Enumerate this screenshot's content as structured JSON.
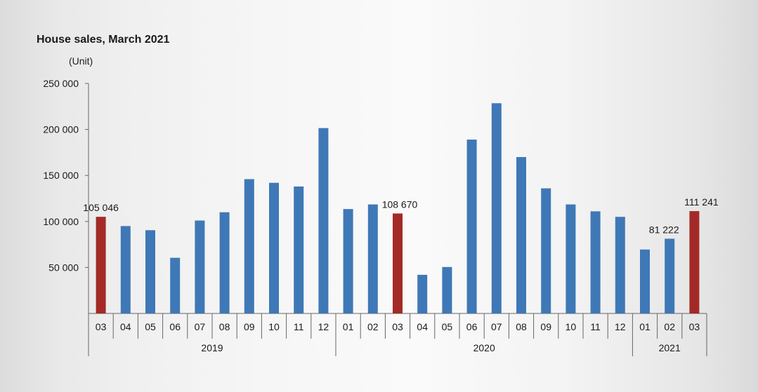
{
  "chart_data": {
    "type": "bar",
    "title": "House sales, March 2021",
    "unit_label": "(Unit)",
    "ylim": [
      0,
      250000
    ],
    "y_ticks": [
      50000,
      100000,
      150000,
      200000,
      250000
    ],
    "y_tick_labels": [
      "50 000",
      "100 000",
      "150 000",
      "200 000",
      "250 000"
    ],
    "grid": false,
    "categories": [
      "03",
      "04",
      "05",
      "06",
      "07",
      "08",
      "09",
      "10",
      "11",
      "12",
      "01",
      "02",
      "03",
      "04",
      "05",
      "06",
      "07",
      "08",
      "09",
      "10",
      "11",
      "12",
      "01",
      "02",
      "03"
    ],
    "years": [
      {
        "label": "2019",
        "start": 0,
        "end": 9
      },
      {
        "label": "2020",
        "start": 10,
        "end": 21
      },
      {
        "label": "2021",
        "start": 22,
        "end": 24
      }
    ],
    "values": [
      105046,
      95000,
      90500,
      60500,
      101000,
      110000,
      146000,
      142000,
      138000,
      201500,
      113500,
      118500,
      108670,
      42000,
      50500,
      189000,
      228500,
      170000,
      136000,
      118500,
      111000,
      105000,
      69500,
      81222,
      111241
    ],
    "highlight": [
      true,
      false,
      false,
      false,
      false,
      false,
      false,
      false,
      false,
      false,
      false,
      false,
      true,
      false,
      false,
      false,
      false,
      false,
      false,
      false,
      false,
      false,
      false,
      false,
      true
    ],
    "data_labels": [
      {
        "index": 0,
        "text": "105 046"
      },
      {
        "index": 12,
        "text": "108 670"
      },
      {
        "index": 23,
        "text": "81 222"
      },
      {
        "index": 24,
        "text": "111 241"
      }
    ],
    "colors": {
      "bar": "#3f78b6",
      "highlight": "#a32a26",
      "axis": "#666666"
    }
  }
}
